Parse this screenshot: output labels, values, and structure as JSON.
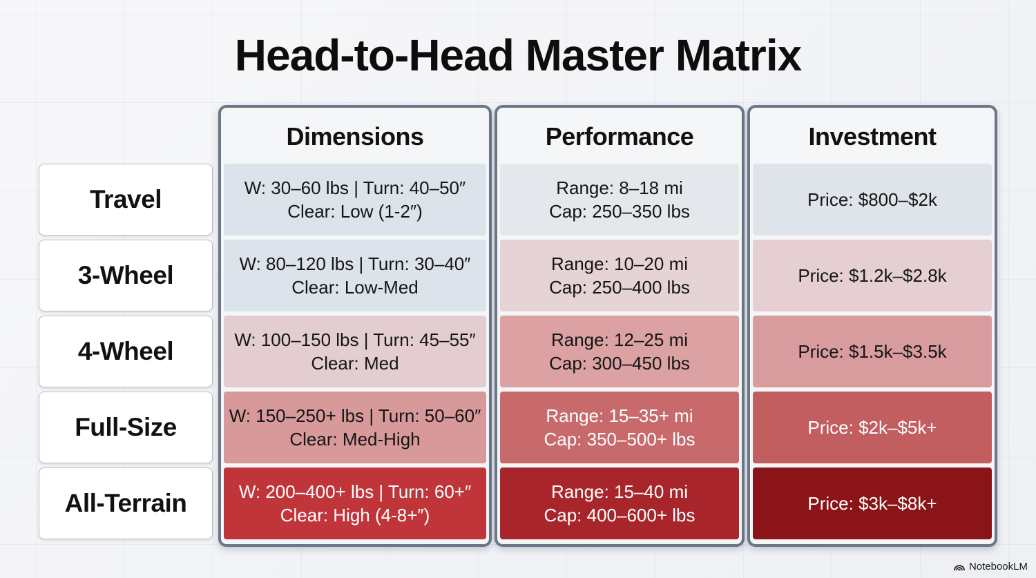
{
  "title": "Head-to-Head Master Matrix",
  "columns": [
    {
      "header": "Dimensions"
    },
    {
      "header": "Performance"
    },
    {
      "header": "Investment"
    }
  ],
  "rows": [
    {
      "label": "Travel",
      "dimensions": [
        "W: 30–60 lbs | Turn: 40–50″",
        "Clear: Low (1-2″)"
      ],
      "performance": [
        "Range: 8–18 mi",
        "Cap: 250–350 lbs"
      ],
      "investment": [
        "Price: $800–$2k"
      ]
    },
    {
      "label": "3-Wheel",
      "dimensions": [
        "W: 80–120 lbs | Turn: 30–40″",
        "Clear: Low-Med"
      ],
      "performance": [
        "Range: 10–20 mi",
        "Cap: 250–400 lbs"
      ],
      "investment": [
        "Price: $1.2k–$2.8k"
      ]
    },
    {
      "label": "4-Wheel",
      "dimensions": [
        "W: 100–150 lbs | Turn: 45–55″",
        "Clear: Med"
      ],
      "performance": [
        "Range: 12–25 mi",
        "Cap: 300–450 lbs"
      ],
      "investment": [
        "Price: $1.5k–$3.5k"
      ]
    },
    {
      "label": "Full-Size",
      "dimensions": [
        "W: 150–250+ lbs | Turn: 50–60″",
        "Clear: Med-High"
      ],
      "performance": [
        "Range: 15–35+ mi",
        "Cap: 350–500+ lbs"
      ],
      "investment": [
        "Price: $2k–$5k+"
      ]
    },
    {
      "label": "All-Terrain",
      "dimensions": [
        "W: 200–400+ lbs | Turn: 60+″",
        "Clear: High (4-8+″)"
      ],
      "performance": [
        "Range: 15–40 mi",
        "Cap: 400–600+ lbs"
      ],
      "investment": [
        "Price: $3k–$8k+"
      ]
    }
  ],
  "colors": {
    "dimensions": [
      "#dde3ea",
      "#dde3ea",
      "#e3cdd0",
      "#d8999b",
      "#c0353a"
    ],
    "performance": [
      "#e4e7ec",
      "#e6d3d5",
      "#dba1a3",
      "#c8696c",
      "#a8262b"
    ],
    "investment": [
      "#dfe4eb",
      "#e5cfd2",
      "#d89c9f",
      "#c25d60",
      "#8a1417"
    ]
  },
  "brand": {
    "name": "NotebookLM",
    "icon": "notebooklm-logo-icon"
  }
}
